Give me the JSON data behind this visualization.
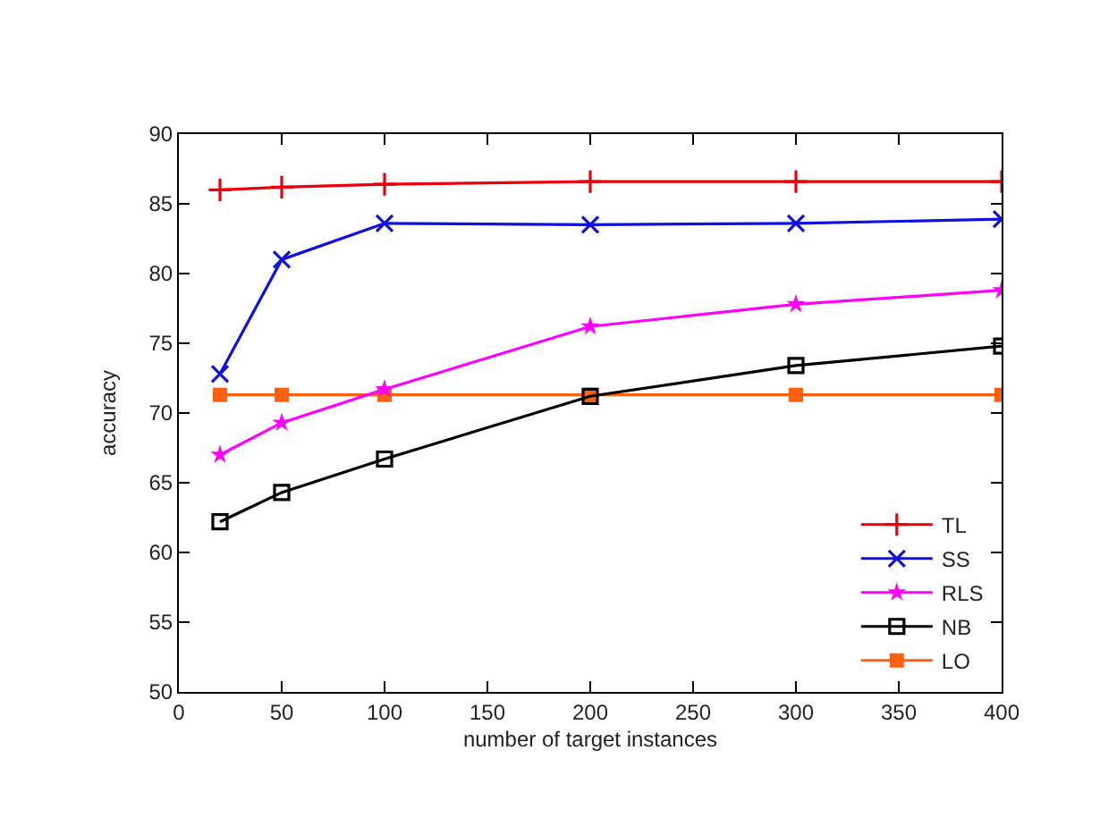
{
  "chart_data": {
    "type": "line",
    "xlabel": "number of target instances",
    "ylabel": "accuracy",
    "x": [
      20,
      50,
      100,
      200,
      300,
      400
    ],
    "xlim": [
      0,
      400
    ],
    "xticks": [
      0,
      50,
      100,
      150,
      200,
      250,
      300,
      350,
      400
    ],
    "ylim": [
      50,
      90
    ],
    "yticks": [
      50,
      55,
      60,
      65,
      70,
      75,
      80,
      85,
      90
    ],
    "legend": "bottom right",
    "line_style": "solid",
    "series": [
      {
        "name": "TL",
        "color": "#e8000b",
        "marker": "cross",
        "values": [
          86.0,
          86.2,
          86.4,
          86.6,
          86.6,
          86.6
        ]
      },
      {
        "name": "SS",
        "color": "#1010e0",
        "marker": "x",
        "values": [
          72.8,
          81.0,
          83.6,
          83.5,
          83.6,
          83.9
        ]
      },
      {
        "name": "RLS",
        "color": "#ff00ff",
        "marker": "star",
        "values": [
          67.0,
          69.3,
          71.7,
          76.2,
          77.8,
          78.8
        ]
      },
      {
        "name": "NB",
        "color": "#000000",
        "marker": "square-open",
        "values": [
          62.2,
          64.3,
          66.7,
          71.2,
          73.4,
          74.8
        ]
      },
      {
        "name": "LO",
        "color": "#ff6010",
        "marker": "square",
        "values": [
          71.3,
          71.3,
          71.3,
          71.3,
          71.3,
          71.3
        ]
      }
    ]
  }
}
